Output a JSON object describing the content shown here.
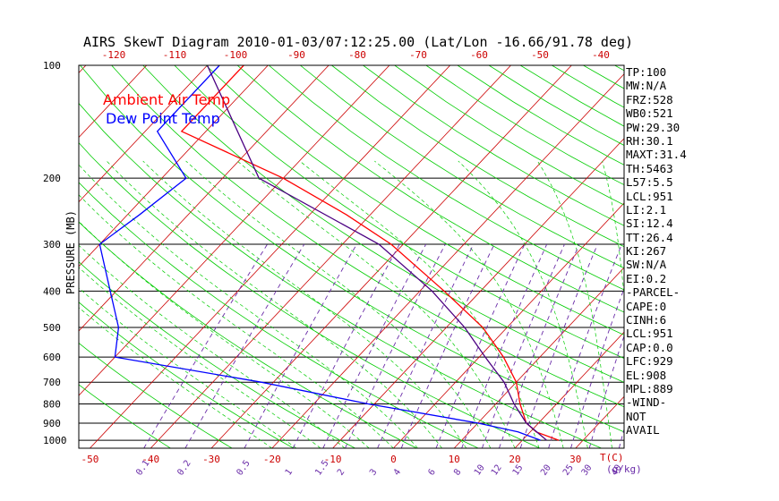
{
  "chart_data": {
    "type": "line",
    "title": "AIRS SkewT Diagram 2010-01-03/07:12:25.00 (Lat/Lon -16.66/91.78 deg)",
    "ylabel": "PRESSURE (MB)",
    "xlabel": "T(C)",
    "mixing_ratio_unit": "(g/kg)",
    "y_scale": "log",
    "ylim": [
      1050,
      100
    ],
    "xlim_bottom": [
      -52,
      34
    ],
    "bottom_ticks": [
      -50,
      -40,
      -30,
      -20,
      -10,
      0,
      10,
      20,
      30
    ],
    "top_ticks": [
      -120,
      -110,
      -100,
      -90,
      -80,
      -70,
      -60,
      -50,
      -40
    ],
    "y_ticks": [
      100,
      200,
      300,
      400,
      500,
      600,
      700,
      800,
      900,
      1000
    ],
    "pressure_lines": [
      200,
      300,
      400,
      500,
      600,
      700,
      800,
      900,
      1000
    ],
    "mixing_ratio_labels": [
      "0.1",
      "0.2",
      "0.5",
      "1",
      "1.5",
      "2",
      "3",
      "4",
      "6",
      "8",
      "10",
      "12",
      "15",
      "20",
      "25",
      "30",
      "40"
    ],
    "legend": [
      "Ambient Air Temp",
      "Dew Point Temp"
    ],
    "legend_position": "top-left",
    "series": [
      {
        "name": "Ambient Air Temp",
        "color": "#ff0000",
        "values": [
          {
            "p": 100,
            "t": -84
          },
          {
            "p": 150,
            "t": -84
          },
          {
            "p": 200,
            "t": -60
          },
          {
            "p": 250,
            "t": -44
          },
          {
            "p": 300,
            "t": -32
          },
          {
            "p": 400,
            "t": -16
          },
          {
            "p": 500,
            "t": -4
          },
          {
            "p": 600,
            "t": 4
          },
          {
            "p": 700,
            "t": 10
          },
          {
            "p": 800,
            "t": 14
          },
          {
            "p": 900,
            "t": 18
          },
          {
            "p": 950,
            "t": 21
          },
          {
            "p": 1000,
            "t": 26
          }
        ]
      },
      {
        "name": "Dew Point Temp",
        "color": "#0000ff",
        "values": [
          {
            "p": 100,
            "t": -88
          },
          {
            "p": 150,
            "t": -88
          },
          {
            "p": 200,
            "t": -76
          },
          {
            "p": 250,
            "t": -78
          },
          {
            "p": 300,
            "t": -80
          },
          {
            "p": 400,
            "t": -71
          },
          {
            "p": 500,
            "t": -64
          },
          {
            "p": 600,
            "t": -60
          },
          {
            "p": 700,
            "t": -32
          },
          {
            "p": 800,
            "t": -11
          },
          {
            "p": 900,
            "t": 10
          },
          {
            "p": 950,
            "t": 18
          },
          {
            "p": 1000,
            "t": 23
          }
        ]
      },
      {
        "name": "Parcel",
        "color": "#4b0082",
        "values": [
          {
            "p": 100,
            "t": -90
          },
          {
            "p": 200,
            "t": -64
          },
          {
            "p": 300,
            "t": -34
          },
          {
            "p": 400,
            "t": -18
          },
          {
            "p": 500,
            "t": -7
          },
          {
            "p": 600,
            "t": 1
          },
          {
            "p": 700,
            "t": 8
          },
          {
            "p": 800,
            "t": 13
          },
          {
            "p": 900,
            "t": 18
          },
          {
            "p": 1000,
            "t": 24
          }
        ]
      }
    ],
    "indices": [
      "TP:100",
      "MW:N/A",
      "FRZ:528",
      "WB0:521",
      "PW:29.30",
      "RH:30.1",
      "MAXT:31.4",
      "TH:5463",
      "L57:5.5",
      "LCL:951",
      "LI:2.1",
      "SI:12.4",
      "TT:26.4",
      "KI:267",
      "SW:N/A",
      "EI:0.2",
      "-PARCEL-",
      "CAPE:0",
      "CINH:6",
      "LCL:951",
      "CAP:0.0",
      "LFC:929",
      "EL:908",
      "MPL:889",
      "-WIND-",
      "NOT",
      "AVAIL"
    ],
    "colors": {
      "temperature": "#ff0000",
      "dewpoint": "#0000ff",
      "parcel": "#4b0082",
      "isotherm": "#cc0000",
      "dry_adiabat": "#00cc00",
      "moist_adiabat": "#00cc00",
      "mixing_ratio": "#6a2ca8",
      "pressure_line": "#000000"
    }
  }
}
